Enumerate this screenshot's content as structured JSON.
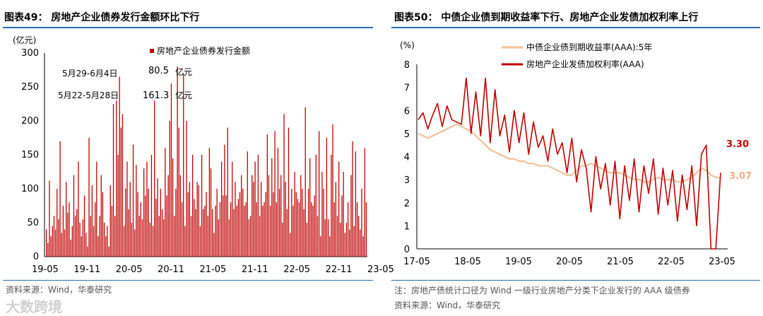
{
  "left": {
    "title": "图表49：  房地产企业债券发行金额环比下行",
    "source": "资料来源：Wind，华泰研究",
    "unit": "(亿元)",
    "legend": "房地产企业债券发行金额",
    "annotations": {
      "week1_label": "5月29-6月4日",
      "week1_value": "80.5",
      "week1_unit": "亿元",
      "week2_label": "5月22-5月28日",
      "week2_value": "161.3",
      "week2_unit": "亿元"
    },
    "chart_data": {
      "type": "bar",
      "title": "房地产企业债券发行金额",
      "ylabel": "(亿元)",
      "ylim": [
        0,
        300
      ],
      "yticks": [
        "0",
        "50",
        "100",
        "150",
        "200",
        "250",
        "300"
      ],
      "xticks": [
        "19-05",
        "19-11",
        "20-05",
        "20-11",
        "21-05",
        "21-11",
        "22-05",
        "22-11",
        "23-05"
      ],
      "x_range": [
        "2019-05",
        "2023-06"
      ],
      "series": [
        {
          "name": "房地产企业债券发行金额",
          "color": "#c00000",
          "values": [
            40,
            20,
            112,
            30,
            45,
            60,
            40,
            100,
            55,
            170,
            35,
            75,
            40,
            110,
            65,
            80,
            25,
            45,
            120,
            60,
            70,
            140,
            50,
            30,
            55,
            90,
            35,
            15,
            175,
            60,
            105,
            45,
            80,
            140,
            30,
            60,
            120,
            95,
            50,
            30,
            45,
            15,
            105,
            75,
            225,
            60,
            230,
            150,
            265,
            190,
            210,
            45,
            100,
            140,
            70,
            110,
            50,
            165,
            40,
            135,
            95,
            60,
            80,
            55,
            130,
            90,
            140,
            100,
            50,
            150,
            45,
            230,
            85,
            115,
            60,
            100,
            70,
            55,
            160,
            90,
            120,
            200,
            255,
            145,
            60,
            100,
            280,
            190,
            120,
            80,
            270,
            45,
            200,
            95,
            110,
            60,
            150,
            85,
            70,
            110,
            105,
            45,
            150,
            70,
            75,
            95,
            60,
            160,
            130,
            70,
            35,
            75,
            100,
            55,
            80,
            140,
            90,
            165,
            90,
            190,
            55,
            80,
            140,
            70,
            110,
            75,
            85,
            95,
            120,
            100,
            75,
            80,
            155,
            55,
            60,
            120,
            110,
            140,
            80,
            150,
            60,
            110,
            75,
            80,
            95,
            180,
            120,
            75,
            145,
            95,
            185,
            80,
            160,
            100,
            120,
            50,
            210,
            110,
            70,
            190,
            35,
            100,
            75,
            125,
            95,
            85,
            80,
            120,
            100,
            70,
            220,
            50,
            100,
            145,
            80,
            75,
            90,
            150,
            60,
            185,
            30,
            125,
            100,
            55,
            175,
            55,
            30,
            150,
            195,
            80,
            110,
            60,
            140,
            50,
            90,
            125,
            35,
            50,
            80,
            40,
            120,
            170,
            45,
            155,
            80,
            60,
            40,
            100,
            30,
            160,
            80
          ]
        }
      ]
    }
  },
  "right": {
    "title": "图表50：  中债企业债到期收益率下行、房地产企业发债加权利率上行",
    "note": "注：房地产债统计口径为 Wind 一级行业房地产分类下企业发行的 AAA 级债券",
    "source": "资料来源：Wind，华泰研究",
    "unit": "(%)",
    "end_labels": {
      "series_a": "3.30",
      "series_b": "3.07"
    },
    "chart_data": {
      "type": "line",
      "ylabel": "(%)",
      "ylim": [
        0,
        8
      ],
      "yticks": [
        "0",
        "1",
        "2",
        "3",
        "4",
        "5",
        "6",
        "7",
        "8"
      ],
      "xticks": [
        "17-05",
        "18-05",
        "19-05",
        "20-05",
        "21-05",
        "22-05",
        "23-05"
      ],
      "x_range": [
        "2017-05",
        "2023-06"
      ],
      "series": [
        {
          "name": "中债企业债到期收益率(AAA):5年",
          "color": "#f2c29a",
          "values": [
            5.0,
            4.9,
            4.8,
            4.9,
            5.0,
            5.1,
            5.2,
            5.3,
            5.4,
            5.3,
            5.2,
            5.1,
            4.9,
            4.7,
            4.5,
            4.3,
            4.2,
            4.1,
            4.0,
            3.9,
            3.9,
            3.8,
            3.8,
            3.7,
            3.7,
            3.6,
            3.6,
            3.6,
            3.5,
            3.4,
            3.3,
            3.2,
            3.2,
            3.4,
            3.6,
            3.6,
            3.7,
            3.6,
            3.5,
            3.4,
            3.3,
            3.3,
            3.3,
            3.2,
            3.1,
            3.0,
            3.0,
            2.9,
            2.9,
            3.0,
            3.1,
            3.0,
            3.0,
            3.0,
            2.9,
            2.9,
            3.0,
            3.1,
            3.3,
            3.5,
            3.4,
            3.2,
            3.1,
            3.07
          ]
        },
        {
          "name": "房地产企业发债加权利率(AAA)",
          "color": "#c00000",
          "values": [
            5.6,
            5.9,
            5.2,
            5.8,
            6.3,
            5.3,
            6.2,
            5.6,
            5.5,
            5.4,
            7.4,
            5.0,
            6.8,
            4.9,
            7.4,
            4.6,
            6.9,
            4.9,
            5.8,
            4.2,
            6.0,
            4.6,
            5.9,
            4.1,
            5.5,
            4.4,
            4.9,
            3.8,
            5.2,
            4.1,
            4.6,
            3.3,
            4.8,
            2.9,
            4.3,
            3.5,
            1.6,
            4.0,
            2.6,
            3.7,
            1.9,
            3.8,
            1.3,
            3.6,
            2.1,
            3.9,
            1.6,
            3.6,
            2.4,
            3.9,
            1.5,
            3.5,
            1.9,
            3.4,
            1.2,
            3.2,
            1.7,
            3.6,
            1.0,
            4.1,
            4.5,
            0.0,
            0.0,
            3.3
          ]
        }
      ]
    }
  },
  "watermark": "大数跨境"
}
